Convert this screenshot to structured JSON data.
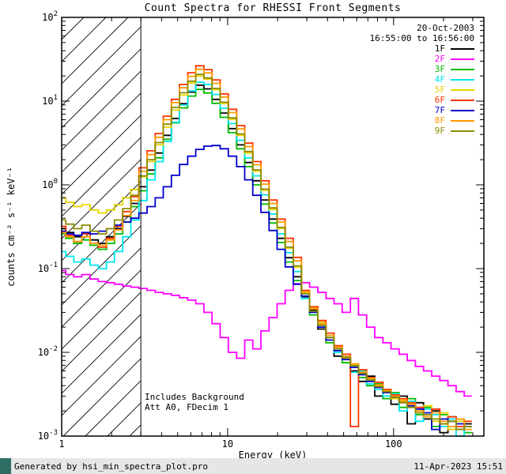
{
  "title": "Count Spectra for RHESSI Front Segments",
  "axes": {
    "xlabel": "Energy (keV)",
    "ylabel": "counts cm⁻² s⁻¹ keV⁻¹"
  },
  "legend": {
    "date": "20-Oct-2003",
    "time_range": "16:55:00 to 16:56:00",
    "entries": [
      {
        "label": "1F",
        "color": "#000000"
      },
      {
        "label": "2F",
        "color": "#ff00ff"
      },
      {
        "label": "3F",
        "color": "#00bb00"
      },
      {
        "label": "4F",
        "color": "#00e5ee"
      },
      {
        "label": "5F",
        "color": "#e8d400"
      },
      {
        "label": "6F",
        "color": "#ff3300"
      },
      {
        "label": "7F",
        "color": "#0000cc"
      },
      {
        "label": "8F",
        "color": "#ff9900"
      },
      {
        "label": "9F",
        "color": "#8b8b00"
      }
    ]
  },
  "annotations": {
    "note_line1": "Includes Background",
    "note_line2": "Att A0, FDecim 1"
  },
  "footer": {
    "left": "Generated by hsi_min_spectra_plot.pro",
    "right": "11-Apr-2023 15:51"
  },
  "chart_data": {
    "type": "line",
    "mode": "log-log step (histogram) spectra",
    "title": "Count Spectra for RHESSI Front Segments",
    "xlabel": "Energy (keV)",
    "ylabel": "counts cm^-2 s^-1 keV^-1",
    "xlim": [
      1,
      350
    ],
    "ylim": [
      0.001,
      100
    ],
    "grid": false,
    "legend_position": "top-right",
    "x_ticks": [
      {
        "value": 1,
        "label": "1"
      },
      {
        "value": 10,
        "label": "10"
      },
      {
        "value": 100,
        "label": "100"
      }
    ],
    "y_ticks": [
      {
        "value": 100,
        "exponent": "2"
      },
      {
        "value": 10,
        "exponent": "1"
      },
      {
        "value": 1,
        "exponent": "0"
      },
      {
        "value": 0.1,
        "exponent": "-1"
      },
      {
        "value": 0.01,
        "exponent": "-2"
      },
      {
        "value": 0.001,
        "exponent": "-3"
      }
    ],
    "hatch_region": {
      "x_from": 1,
      "x_to": 3,
      "meaning": "below attenuator threshold, hatched"
    },
    "x_keV": [
      1.0,
      1.12,
      1.25,
      1.4,
      1.57,
      1.76,
      1.97,
      2.2,
      2.47,
      2.76,
      3.09,
      3.46,
      3.87,
      4.33,
      4.85,
      5.43,
      6.08,
      6.8,
      7.61,
      8.52,
      9.54,
      10.7,
      12.0,
      13.4,
      15.0,
      16.8,
      18.8,
      21.0,
      23.5,
      26.3,
      29.5,
      33.0,
      37.0,
      41.4,
      46.3,
      51.9,
      58.1,
      65.0,
      72.8,
      81.5,
      91.2,
      102.1,
      114.3,
      128.0,
      143.3,
      160.4,
      179.6,
      201.0,
      225.1,
      252.0,
      282.1
    ],
    "series": [
      {
        "name": "1F",
        "color": "#000000",
        "values": [
          0.3,
          0.27,
          0.24,
          0.26,
          0.22,
          0.2,
          0.24,
          0.3,
          0.42,
          0.6,
          0.95,
          1.5,
          2.4,
          3.9,
          6.2,
          9.3,
          12.8,
          15.5,
          14.0,
          10.5,
          7.2,
          4.7,
          3.0,
          1.85,
          1.12,
          0.66,
          0.39,
          0.23,
          0.135,
          0.08,
          0.046,
          0.032,
          0.019,
          0.015,
          0.009,
          0.0088,
          0.006,
          0.0045,
          0.0052,
          0.003,
          0.0036,
          0.0024,
          0.003,
          0.0014,
          0.0025,
          0.0016,
          0.002,
          0.0011,
          0.0017,
          0.0012,
          0.0014
        ]
      },
      {
        "name": "2F",
        "color": "#ff00ff",
        "values": [
          0.095,
          0.085,
          0.08,
          0.085,
          0.075,
          0.07,
          0.068,
          0.065,
          0.062,
          0.06,
          0.058,
          0.055,
          0.052,
          0.05,
          0.048,
          0.045,
          0.042,
          0.038,
          0.03,
          0.022,
          0.015,
          0.01,
          0.0085,
          0.014,
          0.011,
          0.018,
          0.026,
          0.038,
          0.055,
          0.066,
          0.068,
          0.06,
          0.052,
          0.044,
          0.038,
          0.03,
          0.044,
          0.028,
          0.02,
          0.015,
          0.013,
          0.011,
          0.0095,
          0.008,
          0.0068,
          0.006,
          0.0052,
          0.0046,
          0.004,
          0.0034,
          0.003
        ]
      },
      {
        "name": "3F",
        "color": "#00bb00",
        "values": [
          0.26,
          0.23,
          0.2,
          0.22,
          0.19,
          0.17,
          0.2,
          0.26,
          0.36,
          0.55,
          0.85,
          1.35,
          2.1,
          3.5,
          5.5,
          8.3,
          11.5,
          13.8,
          12.5,
          9.4,
          6.4,
          4.2,
          2.7,
          1.65,
          1.0,
          0.59,
          0.35,
          0.205,
          0.12,
          0.072,
          0.05,
          0.028,
          0.021,
          0.013,
          0.011,
          0.0075,
          0.007,
          0.005,
          0.004,
          0.0042,
          0.0028,
          0.0033,
          0.0022,
          0.0028,
          0.0018,
          0.0022,
          0.0013,
          0.0018,
          0.0012,
          0.0016,
          0.0011
        ]
      },
      {
        "name": "4F",
        "color": "#00e5ee",
        "values": [
          0.16,
          0.14,
          0.12,
          0.13,
          0.11,
          0.1,
          0.12,
          0.16,
          0.24,
          0.38,
          0.65,
          1.15,
          1.9,
          3.3,
          5.6,
          9.0,
          13.2,
          16.8,
          15.8,
          12.0,
          8.2,
          5.4,
          3.4,
          2.1,
          1.28,
          0.76,
          0.45,
          0.26,
          0.155,
          0.092,
          0.044,
          0.031,
          0.022,
          0.016,
          0.01,
          0.009,
          0.0058,
          0.006,
          0.0042,
          0.0036,
          0.003,
          0.0032,
          0.002,
          0.0026,
          0.0015,
          0.0021,
          0.0018,
          0.0013,
          0.0016,
          0.001,
          0.0013
        ]
      },
      {
        "name": "5F",
        "color": "#e8d400",
        "values": [
          0.7,
          0.62,
          0.55,
          0.58,
          0.5,
          0.46,
          0.5,
          0.58,
          0.7,
          0.88,
          1.25,
          1.9,
          3.0,
          4.9,
          7.8,
          11.8,
          16.4,
          20.0,
          18.2,
          13.7,
          9.4,
          6.1,
          3.9,
          2.4,
          1.46,
          0.86,
          0.51,
          0.3,
          0.175,
          0.104,
          0.052,
          0.034,
          0.023,
          0.015,
          0.012,
          0.0085,
          0.0072,
          0.0056,
          0.0048,
          0.004,
          0.0034,
          0.0028,
          0.0027,
          0.0024,
          0.0019,
          0.0023,
          0.0015,
          0.0019,
          0.0012,
          0.0015,
          0.0013
        ]
      },
      {
        "name": "6F",
        "color": "#ff3300",
        "values": [
          0.32,
          0.25,
          0.21,
          0.26,
          0.2,
          0.18,
          0.23,
          0.32,
          0.48,
          0.72,
          1.6,
          2.55,
          4.1,
          6.6,
          10.5,
          15.8,
          21.8,
          26.4,
          23.8,
          17.9,
          12.2,
          8.0,
          5.1,
          3.15,
          1.9,
          1.12,
          0.66,
          0.39,
          0.23,
          0.136,
          0.055,
          0.035,
          0.024,
          0.017,
          0.012,
          0.0095,
          0.0013,
          0.0062,
          0.005,
          0.0044,
          0.0036,
          0.0031,
          0.0028,
          0.0025,
          0.0022,
          0.0018,
          0.0021,
          0.0014,
          0.0017,
          0.0013,
          0.0015
        ]
      },
      {
        "name": "7F",
        "color": "#0000cc",
        "values": [
          0.28,
          0.26,
          0.25,
          0.27,
          0.26,
          0.28,
          0.3,
          0.33,
          0.36,
          0.4,
          0.46,
          0.55,
          0.7,
          0.95,
          1.3,
          1.75,
          2.2,
          2.65,
          2.9,
          2.95,
          2.7,
          2.2,
          1.65,
          1.15,
          0.75,
          0.47,
          0.285,
          0.17,
          0.105,
          0.065,
          0.047,
          0.03,
          0.02,
          0.014,
          0.0105,
          0.0082,
          0.0066,
          0.0054,
          0.0045,
          0.0038,
          0.0033,
          0.0029,
          0.0026,
          0.0023,
          0.0021,
          0.0019,
          0.0012,
          0.0016,
          0.0015,
          0.0014,
          0.0013
        ]
      },
      {
        "name": "8F",
        "color": "#ff9900",
        "values": [
          0.27,
          0.24,
          0.21,
          0.24,
          0.2,
          0.19,
          0.22,
          0.29,
          0.43,
          0.65,
          1.45,
          2.3,
          3.7,
          6.0,
          9.6,
          14.4,
          19.8,
          24.0,
          21.7,
          16.3,
          11.2,
          7.3,
          4.65,
          2.87,
          1.74,
          1.02,
          0.6,
          0.36,
          0.21,
          0.124,
          0.053,
          0.033,
          0.022,
          0.016,
          0.0115,
          0.009,
          0.0073,
          0.0058,
          0.0049,
          0.0041,
          0.0035,
          0.003,
          0.0026,
          0.0024,
          0.002,
          0.0017,
          0.0019,
          0.0015,
          0.0013,
          0.0016,
          0.0012
        ]
      },
      {
        "name": "9F",
        "color": "#8b8b00",
        "values": [
          0.38,
          0.34,
          0.3,
          0.33,
          0.28,
          0.26,
          0.3,
          0.38,
          0.52,
          0.75,
          1.28,
          2.0,
          3.2,
          5.3,
          8.4,
          12.6,
          17.3,
          20.9,
          18.9,
          14.2,
          9.7,
          6.3,
          4.05,
          2.5,
          1.51,
          0.89,
          0.53,
          0.31,
          0.18,
          0.108,
          0.05,
          0.031,
          0.021,
          0.015,
          0.011,
          0.0086,
          0.0069,
          0.0056,
          0.0047,
          0.0039,
          0.0034,
          0.0029,
          0.0025,
          0.0022,
          0.0019,
          0.0018,
          0.0016,
          0.0014,
          0.0015,
          0.0012,
          0.0013
        ]
      }
    ]
  }
}
